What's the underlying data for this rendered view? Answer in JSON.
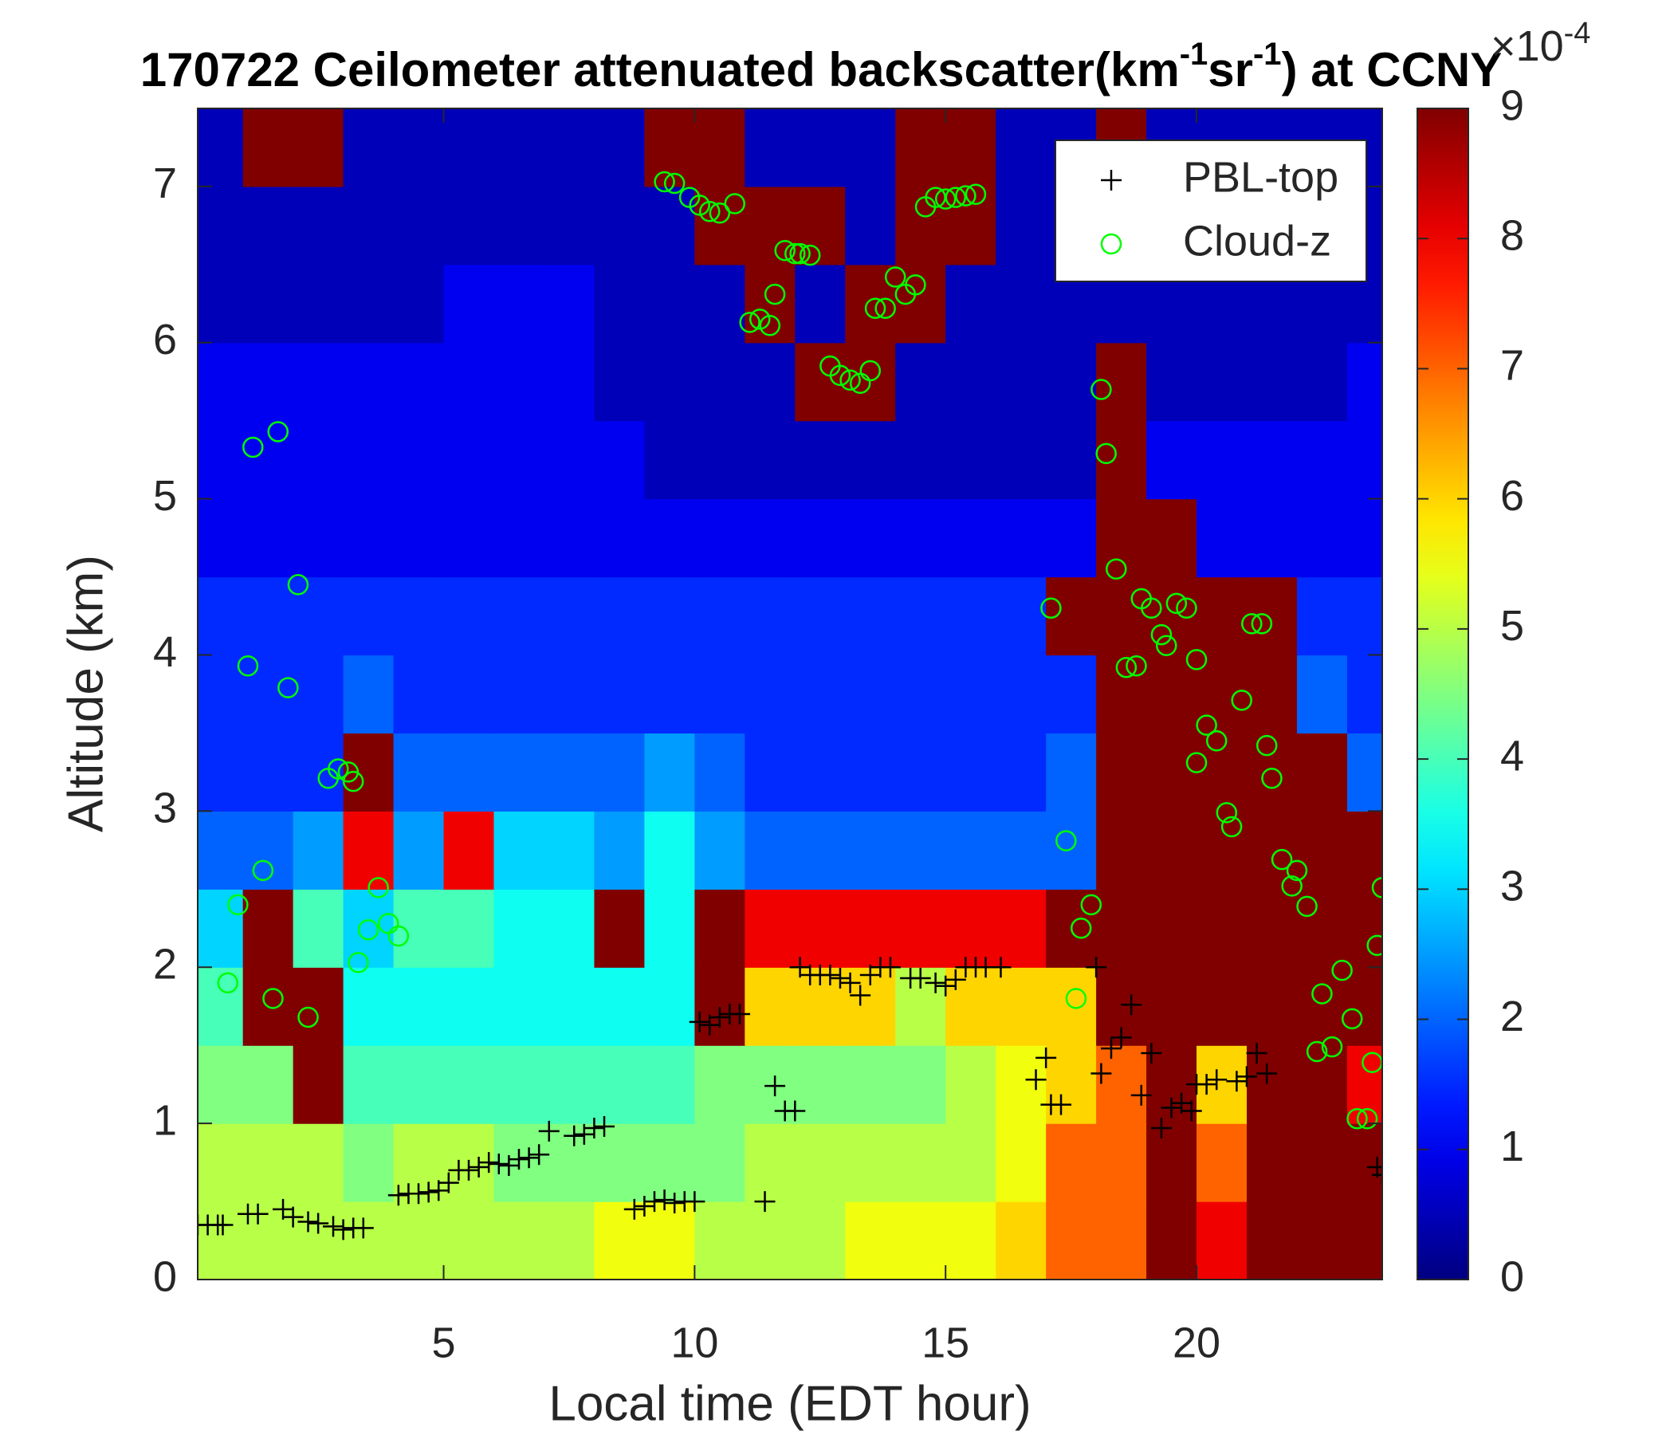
{
  "chart_data": {
    "type": "heatmap",
    "title": [
      "170722 Ceilometer attenuated backscatter(km",
      "-1",
      "sr",
      "-1",
      ") at CCNY"
    ],
    "x_label": "Local time (EDT hour)",
    "y_label": "Altitude (km)",
    "xlim": [
      0.1,
      23.7
    ],
    "ylim": [
      0,
      7.5
    ],
    "xticks": [
      5,
      10,
      15,
      20
    ],
    "yticks": [
      0,
      1,
      2,
      3,
      4,
      5,
      6,
      7
    ],
    "colormap": "jet",
    "clim": [
      0,
      9
    ],
    "cticks": [
      0,
      1,
      2,
      3,
      4,
      5,
      6,
      7,
      8,
      9
    ],
    "color_multiplier": [
      "×10",
      "-4"
    ],
    "legend_location": "northeast",
    "heatmap": {
      "x": [
        0.5,
        1.5,
        2.5,
        3.5,
        4.5,
        5.5,
        6.5,
        7.5,
        8.5,
        9.5,
        10.5,
        11.5,
        12.5,
        13.5,
        14.5,
        15.5,
        16.5,
        17.5,
        18.5,
        19.5,
        20.5,
        21.5,
        22.5,
        23.5
      ],
      "y": [
        0.25,
        0.75,
        1.25,
        1.75,
        2.25,
        2.75,
        3.25,
        3.75,
        4.25,
        4.75,
        5.25,
        5.75,
        6.25,
        6.75,
        7.25
      ],
      "z": [
        [
          5,
          5,
          5,
          5,
          5,
          5,
          5,
          5,
          5.5,
          5.5,
          5,
          5,
          5,
          5.5,
          5.5,
          5.5,
          6,
          7,
          7,
          9,
          8,
          9,
          9,
          9
        ],
        [
          5,
          5,
          5,
          4.5,
          5,
          5,
          4.5,
          4.5,
          4.5,
          4.5,
          4.5,
          5,
          5,
          5,
          5,
          5,
          5.5,
          7,
          7,
          9,
          7,
          9,
          9,
          9
        ],
        [
          4.5,
          4.5,
          9,
          4,
          4,
          4,
          4,
          4,
          4,
          4,
          4.5,
          4.5,
          4.5,
          4.5,
          4.5,
          5,
          5.5,
          6,
          7,
          9,
          6,
          9,
          9,
          8
        ],
        [
          4,
          9,
          9,
          3.5,
          3.5,
          3.5,
          3.5,
          3.5,
          3.5,
          3.5,
          9,
          6,
          6,
          6,
          5,
          6,
          6,
          6,
          9,
          9,
          9,
          9,
          9,
          9
        ],
        [
          3,
          9,
          4,
          3,
          4,
          4,
          3.5,
          3.5,
          9,
          3.5,
          9,
          8,
          8,
          8,
          8,
          8,
          8,
          9,
          9,
          9,
          9,
          9,
          9,
          9
        ],
        [
          2,
          2,
          2.5,
          8,
          2.5,
          8,
          3,
          3,
          2.5,
          3.5,
          2.5,
          2,
          2,
          2,
          2,
          2,
          2,
          2,
          9,
          9,
          9,
          9,
          9,
          9
        ],
        [
          1.5,
          1.5,
          1.5,
          9,
          2,
          2,
          2,
          2,
          2,
          2.5,
          2,
          1.5,
          1.5,
          1.5,
          1.5,
          1.5,
          1.5,
          2,
          9,
          9,
          9,
          9,
          9,
          2
        ],
        [
          1.5,
          1.5,
          1.5,
          2,
          1.5,
          1.5,
          1.5,
          1.5,
          1.5,
          1.5,
          1.5,
          1.5,
          1.5,
          1.5,
          1.5,
          1.5,
          1.5,
          1.5,
          9,
          9,
          9,
          9,
          2,
          1.5
        ],
        [
          1.5,
          1.5,
          1.5,
          1.5,
          1.5,
          1.5,
          1.5,
          1.5,
          1.5,
          1.5,
          1.5,
          1.5,
          1.5,
          1.5,
          1.5,
          1.5,
          1.5,
          9,
          9,
          9,
          9,
          9,
          1.5,
          1.5
        ],
        [
          1,
          1,
          1,
          1,
          1,
          1,
          1,
          1,
          1,
          1,
          1,
          1,
          1,
          1,
          1,
          1,
          1,
          1,
          9,
          9,
          1,
          1,
          1,
          1
        ],
        [
          1,
          1,
          1,
          1,
          1,
          1,
          1,
          1,
          1,
          0.5,
          0.5,
          0.5,
          0.5,
          0.5,
          0.5,
          0.5,
          0.5,
          0.5,
          9,
          1,
          1,
          1,
          1,
          1
        ],
        [
          1,
          1,
          1,
          1,
          1,
          1,
          1,
          1,
          0.5,
          0.5,
          0.5,
          0.5,
          9,
          9,
          0.5,
          0.5,
          0.5,
          0.5,
          9,
          0.5,
          0.5,
          0.5,
          0.5,
          1
        ],
        [
          0.5,
          0.5,
          0.5,
          0.5,
          0.5,
          1,
          1,
          1,
          0.5,
          0.5,
          0.5,
          9,
          0.5,
          9,
          9,
          0.5,
          0.5,
          0.5,
          0.5,
          0.5,
          0.5,
          0.5,
          0.5,
          0.5
        ],
        [
          0.5,
          0.5,
          0.5,
          0.5,
          0.5,
          0.5,
          0.5,
          0.5,
          0.5,
          0.5,
          9,
          9,
          9,
          0.5,
          9,
          9,
          0.5,
          0.5,
          0.5,
          0.5,
          0.5,
          0.5,
          0.5,
          0.5
        ],
        [
          0.5,
          9,
          9,
          0.5,
          0.5,
          0.5,
          0.5,
          0.5,
          0.5,
          9,
          9,
          0.5,
          0.5,
          0.5,
          9,
          9,
          0.5,
          0.5,
          9,
          0.5,
          0.5,
          0.5,
          0.5,
          0.5
        ]
      ]
    },
    "series": [
      {
        "name": "PBL-top",
        "marker": "+",
        "color": "#000000",
        "x": [
          0.1,
          0.3,
          0.5,
          0.6,
          1.1,
          1.3,
          1.8,
          2.0,
          2.3,
          2.5,
          2.8,
          3.0,
          3.2,
          3.4,
          4.1,
          4.3,
          4.5,
          4.7,
          4.9,
          5.1,
          5.3,
          5.5,
          5.7,
          5.9,
          6.1,
          6.3,
          6.5,
          6.7,
          6.9,
          7.1,
          7.6,
          7.8,
          8.0,
          8.2,
          8.8,
          9.0,
          9.2,
          9.4,
          9.6,
          9.8,
          10.0,
          10.1,
          10.3,
          10.5,
          10.7,
          10.9,
          11.4,
          11.6,
          11.8,
          12.0,
          12.1,
          12.3,
          12.5,
          12.7,
          12.9,
          13.1,
          13.3,
          13.5,
          13.7,
          13.9,
          14.3,
          14.5,
          14.8,
          15.0,
          15.2,
          15.4,
          15.6,
          15.8,
          16.1,
          16.8,
          17.0,
          17.1,
          17.3,
          18.0,
          18.1,
          18.3,
          18.5,
          18.7,
          18.9,
          19.1,
          19.3,
          19.5,
          19.7,
          19.9,
          20.0,
          20.2,
          20.4,
          20.8,
          21.0,
          21.2,
          21.4,
          23.6,
          23.7
        ],
        "values": [
          0.35,
          0.35,
          0.35,
          0.35,
          0.42,
          0.42,
          0.45,
          0.4,
          0.37,
          0.36,
          0.34,
          0.32,
          0.33,
          0.33,
          0.54,
          0.55,
          0.55,
          0.56,
          0.57,
          0.62,
          0.7,
          0.7,
          0.72,
          0.75,
          0.74,
          0.73,
          0.77,
          0.78,
          0.8,
          0.95,
          0.92,
          0.93,
          0.97,
          0.98,
          0.45,
          0.47,
          0.5,
          0.51,
          0.49,
          0.5,
          0.5,
          1.65,
          1.63,
          1.68,
          1.7,
          1.7,
          0.5,
          1.24,
          1.08,
          1.08,
          2.0,
          1.95,
          1.95,
          1.95,
          1.93,
          1.9,
          1.82,
          1.95,
          2.0,
          2.0,
          1.93,
          1.93,
          1.9,
          1.88,
          1.92,
          2.0,
          2.0,
          2.0,
          2.0,
          1.28,
          1.42,
          1.12,
          1.12,
          2.0,
          1.32,
          1.48,
          1.55,
          1.76,
          1.18,
          1.45,
          0.97,
          1.1,
          1.13,
          1.08,
          1.25,
          1.25,
          1.28,
          1.27,
          1.3,
          1.45,
          1.32,
          0.72,
          0.67
        ]
      },
      {
        "name": "Cloud-z",
        "marker": "o",
        "color": "#00ff00",
        "x": [
          0.7,
          0.9,
          1.1,
          1.2,
          1.4,
          1.6,
          1.7,
          1.9,
          2.1,
          2.3,
          2.7,
          2.9,
          3.1,
          3.2,
          3.3,
          3.5,
          3.7,
          3.9,
          4.1,
          9.4,
          9.6,
          9.9,
          10.1,
          10.3,
          10.5,
          10.8,
          11.1,
          11.3,
          11.5,
          11.6,
          11.8,
          12.0,
          12.1,
          12.3,
          12.7,
          12.9,
          13.1,
          13.3,
          13.5,
          13.6,
          13.8,
          14.0,
          14.2,
          14.4,
          14.6,
          14.8,
          15.0,
          15.2,
          15.4,
          15.6,
          17.1,
          17.4,
          17.6,
          17.7,
          17.9,
          18.1,
          18.2,
          18.4,
          18.6,
          18.8,
          18.9,
          19.1,
          19.3,
          19.4,
          19.6,
          19.8,
          20.0,
          20.0,
          20.2,
          20.4,
          20.6,
          20.7,
          20.9,
          21.1,
          21.3,
          21.4,
          21.5,
          21.7,
          21.9,
          22.0,
          22.2,
          22.4,
          22.5,
          22.7,
          22.9,
          23.1,
          23.2,
          23.4,
          23.5,
          23.6,
          23.7
        ],
        "values": [
          1.9,
          2.4,
          3.93,
          5.33,
          2.62,
          1.8,
          5.43,
          3.79,
          4.45,
          1.68,
          3.21,
          3.27,
          3.25,
          3.19,
          2.03,
          2.24,
          2.51,
          2.28,
          2.2,
          7.03,
          7.02,
          6.93,
          6.88,
          6.84,
          6.83,
          6.89,
          6.13,
          6.15,
          6.11,
          6.31,
          6.59,
          6.57,
          6.57,
          6.56,
          5.85,
          5.79,
          5.76,
          5.74,
          5.82,
          6.22,
          6.22,
          6.42,
          6.31,
          6.37,
          6.87,
          6.93,
          6.92,
          6.93,
          6.94,
          6.95,
          4.3,
          2.81,
          1.8,
          2.25,
          2.4,
          5.7,
          5.29,
          4.55,
          3.92,
          3.93,
          4.36,
          4.3,
          4.13,
          4.06,
          4.33,
          4.3,
          3.97,
          3.31,
          3.55,
          3.45,
          2.99,
          2.9,
          3.71,
          4.2,
          4.2,
          3.42,
          3.21,
          2.69,
          2.52,
          2.62,
          2.39,
          1.46,
          1.83,
          1.49,
          1.98,
          1.67,
          1.03,
          1.03,
          1.39,
          2.14,
          2.51
        ]
      }
    ]
  }
}
